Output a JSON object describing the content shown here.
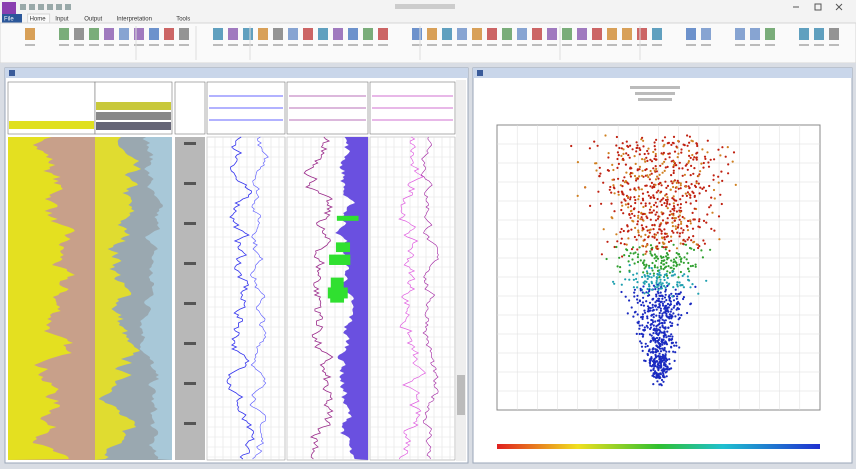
{
  "ribbon": {
    "tabs": [
      "File",
      "Home",
      "Input",
      "Output",
      "Interpretation",
      "Tools"
    ]
  }
}
